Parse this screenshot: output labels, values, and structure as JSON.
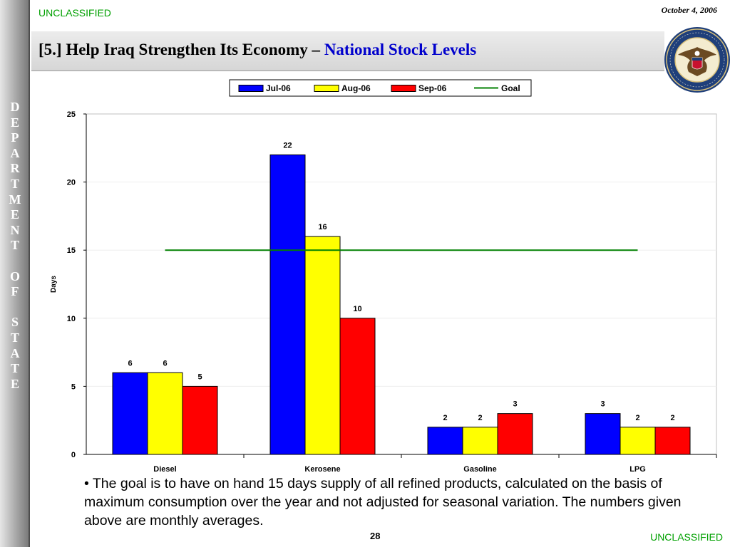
{
  "header": {
    "classification": "UNCLASSIFIED",
    "date": "October 4, 2006",
    "title_main": "[5.] Help Iraq Strengthen Its Economy – ",
    "title_accent": "National Stock Levels",
    "sidebar_letters": [
      "D",
      "E",
      "P",
      "A",
      "R",
      "T",
      "M",
      "E",
      "N",
      "T",
      " ",
      "O",
      "F",
      " ",
      "S",
      "T",
      "A",
      "T",
      "E"
    ]
  },
  "chart_data": {
    "type": "bar",
    "categories": [
      "Diesel",
      "Kerosene",
      "Gasoline",
      "LPG"
    ],
    "series": [
      {
        "name": "Jul-06",
        "values": [
          6,
          22,
          2,
          3
        ],
        "color": "#0000ff"
      },
      {
        "name": "Aug-06",
        "values": [
          6,
          16,
          2,
          2
        ],
        "color": "#ffff00"
      },
      {
        "name": "Sep-06",
        "values": [
          5,
          10,
          3,
          2
        ],
        "color": "#ff0000"
      }
    ],
    "goal": {
      "name": "Goal",
      "value": 15,
      "color": "#008000"
    },
    "ylabel": "Days",
    "ylim": [
      0,
      25
    ],
    "yticks": [
      0,
      5,
      10,
      15,
      20,
      25
    ],
    "grid": true,
    "legend_position": "top-center"
  },
  "footer": {
    "note": "• The goal is to have on hand 15 days supply of all refined products, calculated on the basis of maximum consumption over the year and not adjusted for seasonal variation.  The numbers given above are monthly averages.",
    "page_number": "28",
    "classification": "UNCLASSIFIED"
  }
}
